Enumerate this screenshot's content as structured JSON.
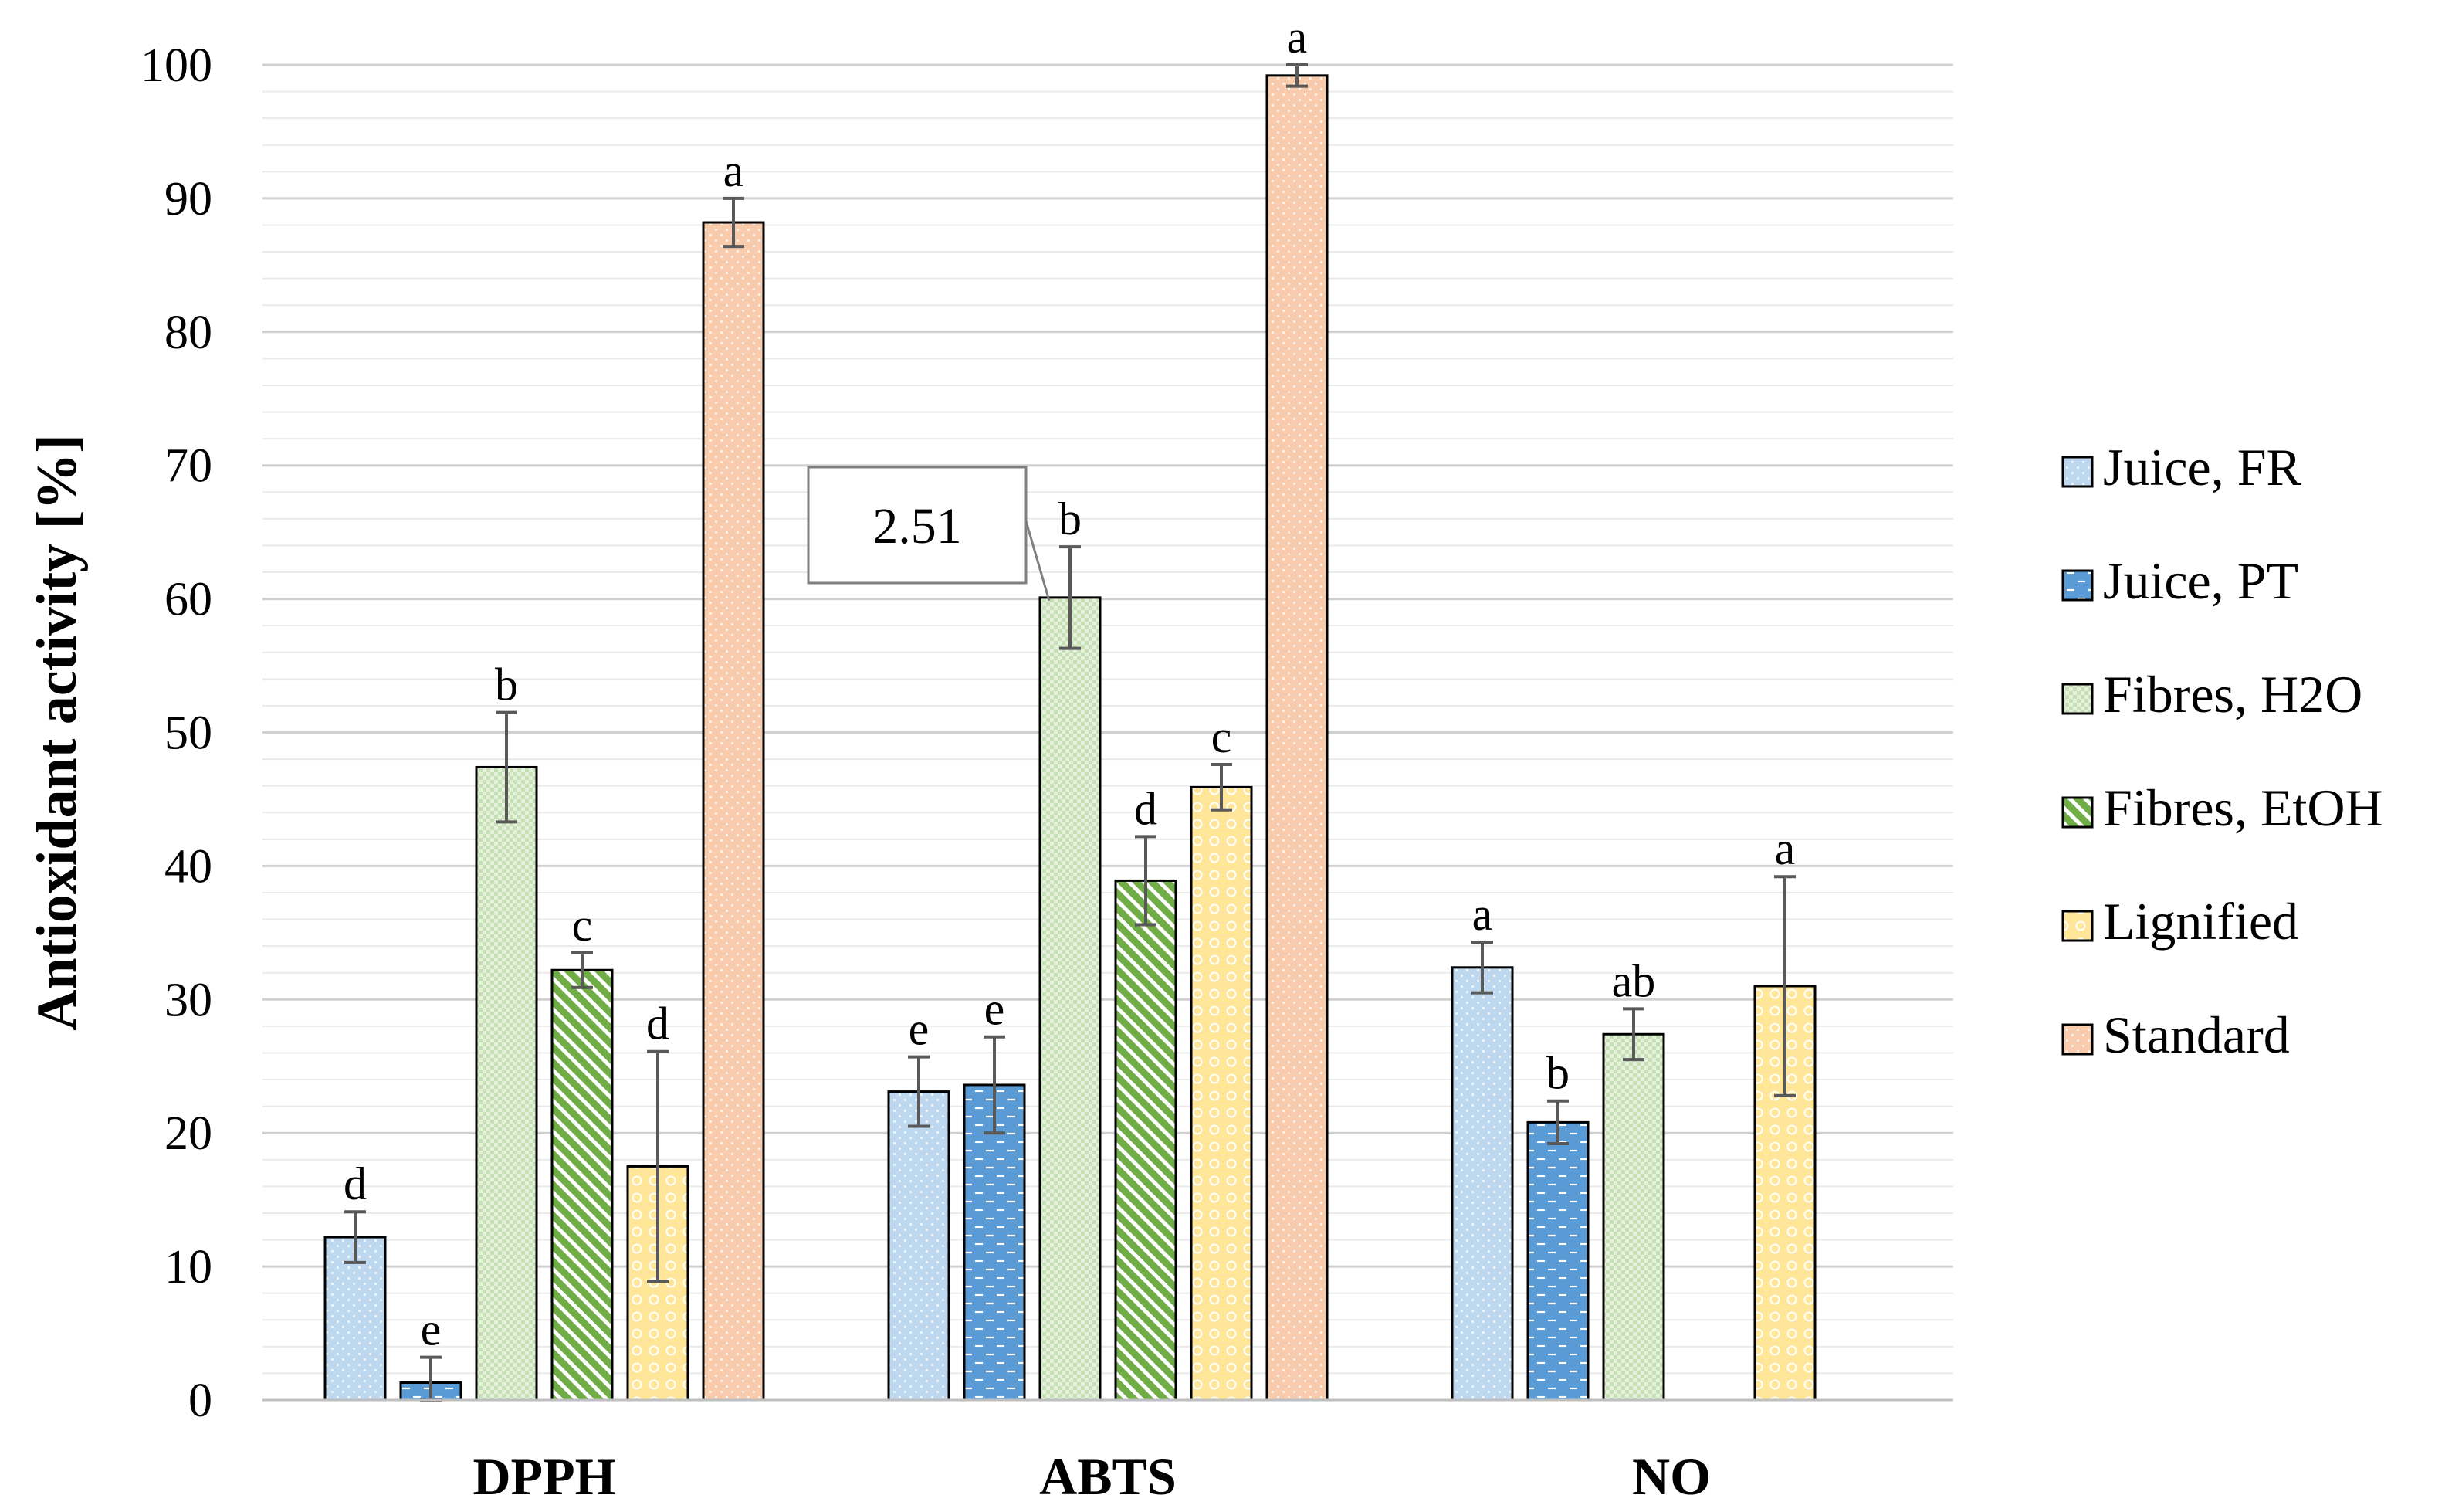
{
  "chart_data": {
    "type": "bar",
    "ylabel": "Antioxidant activity [%]",
    "xlabel": "",
    "ylim": [
      0,
      100
    ],
    "yticks": [
      0,
      10,
      20,
      30,
      40,
      50,
      60,
      70,
      80,
      90,
      100
    ],
    "grid": "horizontal",
    "legend_position": "right",
    "categories": [
      "DPPH",
      "ABTS",
      "NO"
    ],
    "series": [
      {
        "name": "Juice, FR",
        "values": [
          12.2,
          23.1,
          32.4
        ],
        "errors": [
          1.9,
          2.6,
          1.9
        ],
        "labels": [
          "d",
          "e",
          "a"
        ],
        "fill": "#bdd7ee",
        "pattern": "dots-light"
      },
      {
        "name": "Juice, PT",
        "values": [
          1.3,
          23.6,
          20.8
        ],
        "errors": [
          1.9,
          3.6,
          1.6
        ],
        "labels": [
          "e",
          "e",
          "b"
        ],
        "fill": "#5b9bd5",
        "pattern": "dashes"
      },
      {
        "name": "Fibres, H2O",
        "values": [
          47.4,
          60.1,
          27.4
        ],
        "errors": [
          4.1,
          3.8,
          1.9
        ],
        "labels": [
          "b",
          "b",
          "ab"
        ],
        "fill": "#c5e0b4",
        "pattern": "checker"
      },
      {
        "name": "Fibres, EtOH",
        "values": [
          32.2,
          38.9,
          null
        ],
        "errors": [
          1.3,
          3.3,
          null
        ],
        "labels": [
          "c",
          "d",
          ""
        ],
        "fill": "#70ad47",
        "pattern": "diagonal"
      },
      {
        "name": "Lignified",
        "values": [
          17.5,
          45.9,
          31.0
        ],
        "errors": [
          8.6,
          1.7,
          8.2
        ],
        "labels": [
          "d",
          "c",
          "a"
        ],
        "fill": "#ffe699",
        "pattern": "circles"
      },
      {
        "name": "Standard",
        "values": [
          88.2,
          99.2,
          null
        ],
        "errors": [
          1.8,
          0.8,
          null
        ],
        "labels": [
          "a",
          "a",
          ""
        ],
        "fill": "#f8cbad",
        "pattern": "dots-light"
      }
    ],
    "annotations": [
      {
        "text": "2.51",
        "category": "ABTS",
        "series": "Fibres, H2O"
      }
    ]
  }
}
